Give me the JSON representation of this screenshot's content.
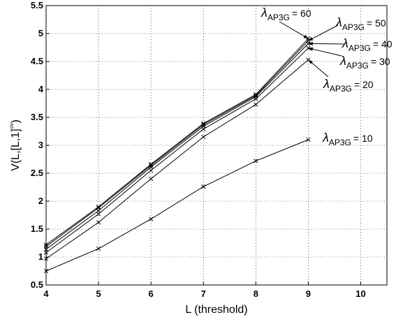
{
  "chart_data": {
    "type": "line",
    "xlabel": "L  (threshold)",
    "ylabel_base": "V(L,[L,1]",
    "ylabel_sup": "∞",
    "ylabel_close": ")",
    "xlim": [
      4,
      10.5
    ],
    "ylim": [
      0.5,
      5.5
    ],
    "xticks": [
      4,
      5,
      6,
      7,
      8,
      9,
      10
    ],
    "yticks": [
      "0.5",
      "1",
      "1.5",
      "2",
      "2.5",
      "3",
      "3.5",
      "4",
      "4.5",
      "5",
      "5.5"
    ],
    "grid": true,
    "marker": "x",
    "x": [
      4,
      5,
      6,
      7,
      8,
      9
    ],
    "series": [
      {
        "name": "10",
        "values": [
          0.75,
          1.15,
          1.68,
          2.26,
          2.72,
          3.1
        ]
      },
      {
        "name": "20",
        "values": [
          0.97,
          1.62,
          2.4,
          3.15,
          3.73,
          4.53
        ]
      },
      {
        "name": "30",
        "values": [
          1.08,
          1.77,
          2.55,
          3.29,
          3.83,
          4.74
        ]
      },
      {
        "name": "40",
        "values": [
          1.14,
          1.83,
          2.61,
          3.34,
          3.87,
          4.82
        ]
      },
      {
        "name": "50",
        "values": [
          1.19,
          1.88,
          2.64,
          3.37,
          3.89,
          4.87
        ]
      },
      {
        "name": "60",
        "values": [
          1.22,
          1.9,
          2.66,
          3.39,
          3.91,
          4.91
        ]
      }
    ],
    "annotations": [
      {
        "lambda": "λ",
        "sub": "AP3G",
        "value": "= 60"
      },
      {
        "lambda": "λ",
        "sub": "AP3G",
        "value": "= 50"
      },
      {
        "lambda": "λ",
        "sub": "AP3G",
        "value": "= 40"
      },
      {
        "lambda": "λ",
        "sub": "AP3G",
        "value": "= 30"
      },
      {
        "lambda": "λ",
        "sub": "AP3G",
        "value": "= 20"
      },
      {
        "lambda": "λ",
        "sub": "AP3G",
        "value": "= 10"
      }
    ]
  }
}
